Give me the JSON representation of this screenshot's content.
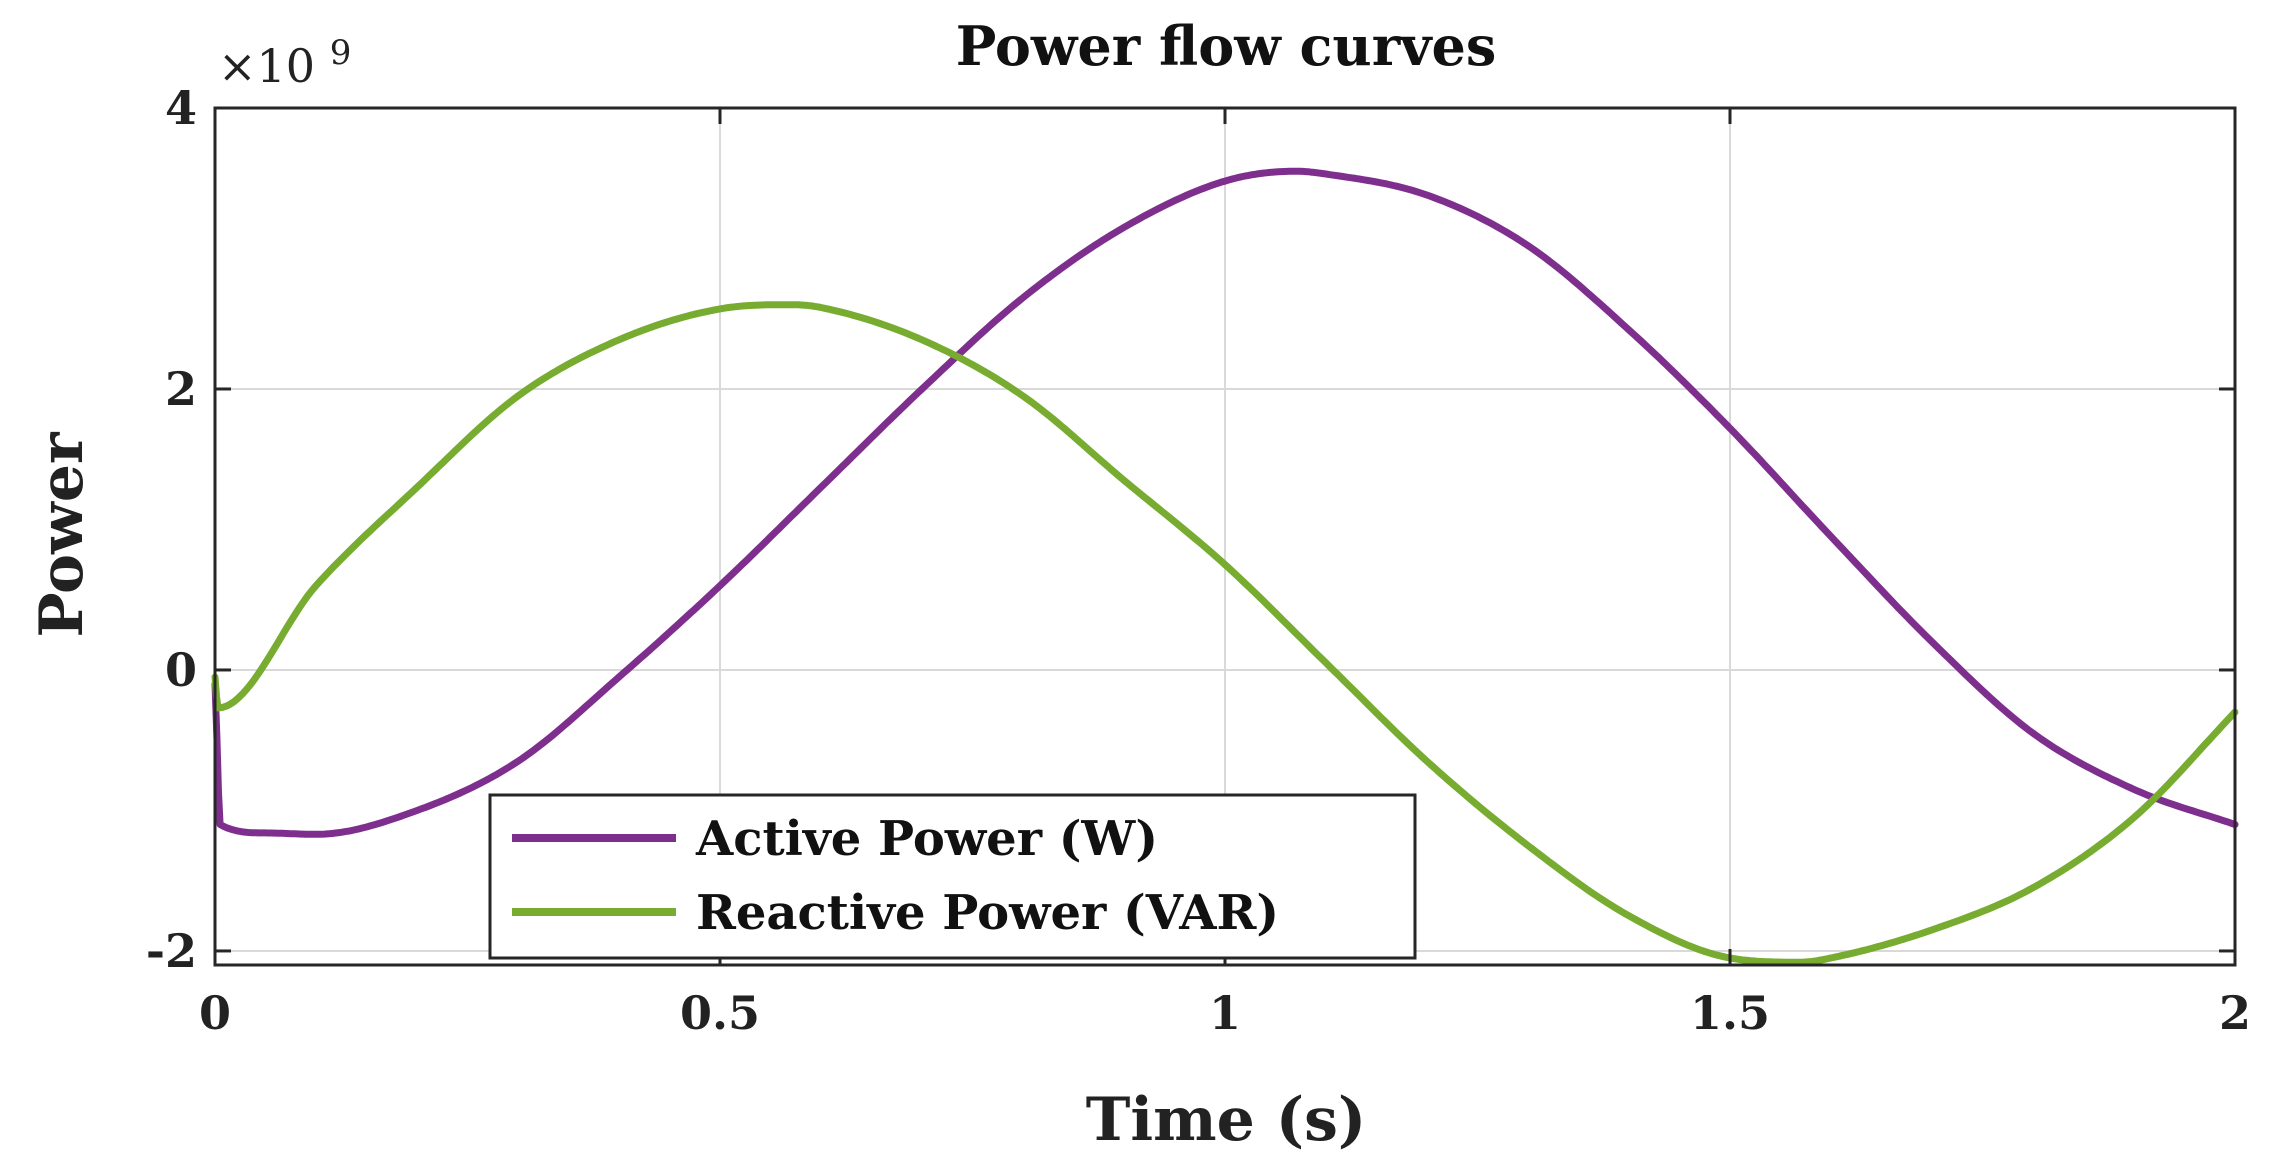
{
  "chart_data": {
    "type": "line",
    "title": "Power flow curves",
    "xlabel": "Time (s)",
    "ylabel": "Power",
    "y_exponent_base": "×10",
    "y_exponent_power": "9",
    "xlim": [
      0,
      2
    ],
    "ylim": [
      -2.1,
      4
    ],
    "x_ticks": [
      0,
      0.5,
      1,
      1.5,
      2
    ],
    "x_tick_labels": [
      "0",
      "0.5",
      "1",
      "1.5",
      "2"
    ],
    "y_ticks": [
      -2,
      0,
      2,
      4
    ],
    "y_tick_labels": [
      "-2",
      "0",
      "2",
      "4"
    ],
    "grid": true,
    "legend_position": "bottom-left",
    "series": [
      {
        "name": "Active Power (W)",
        "color": "#7e2f8e",
        "x": [
          0,
          0.002,
          0.005,
          0.05,
          0.1,
          0.2,
          0.3,
          0.4,
          0.5,
          0.6,
          0.7,
          0.8,
          0.9,
          1.0,
          1.07,
          1.1,
          1.2,
          1.3,
          1.4,
          1.5,
          1.6,
          1.7,
          1.8,
          1.9,
          2.0
        ],
        "values": [
          -0.1,
          -0.5,
          -1.1,
          -1.16,
          -1.17,
          -1.0,
          -0.65,
          -0.05,
          0.6,
          1.3,
          2.0,
          2.65,
          3.15,
          3.48,
          3.55,
          3.53,
          3.38,
          3.02,
          2.42,
          1.72,
          0.95,
          0.2,
          -0.45,
          -0.85,
          -1.1
        ]
      },
      {
        "name": "Reactive Power (VAR)",
        "color": "#77ac30",
        "x": [
          0,
          0.003,
          0.1,
          0.2,
          0.3,
          0.4,
          0.5,
          0.57,
          0.6,
          0.7,
          0.8,
          0.9,
          1.0,
          1.1,
          1.2,
          1.3,
          1.4,
          1.5,
          1.57,
          1.6,
          1.7,
          1.8,
          1.9,
          2.0
        ],
        "values": [
          -0.05,
          -0.27,
          0.6,
          1.3,
          1.95,
          2.35,
          2.57,
          2.6,
          2.58,
          2.35,
          1.95,
          1.35,
          0.75,
          0.05,
          -0.65,
          -1.25,
          -1.75,
          -2.05,
          -2.08,
          -2.05,
          -1.85,
          -1.55,
          -1.05,
          -0.3
        ]
      }
    ]
  }
}
